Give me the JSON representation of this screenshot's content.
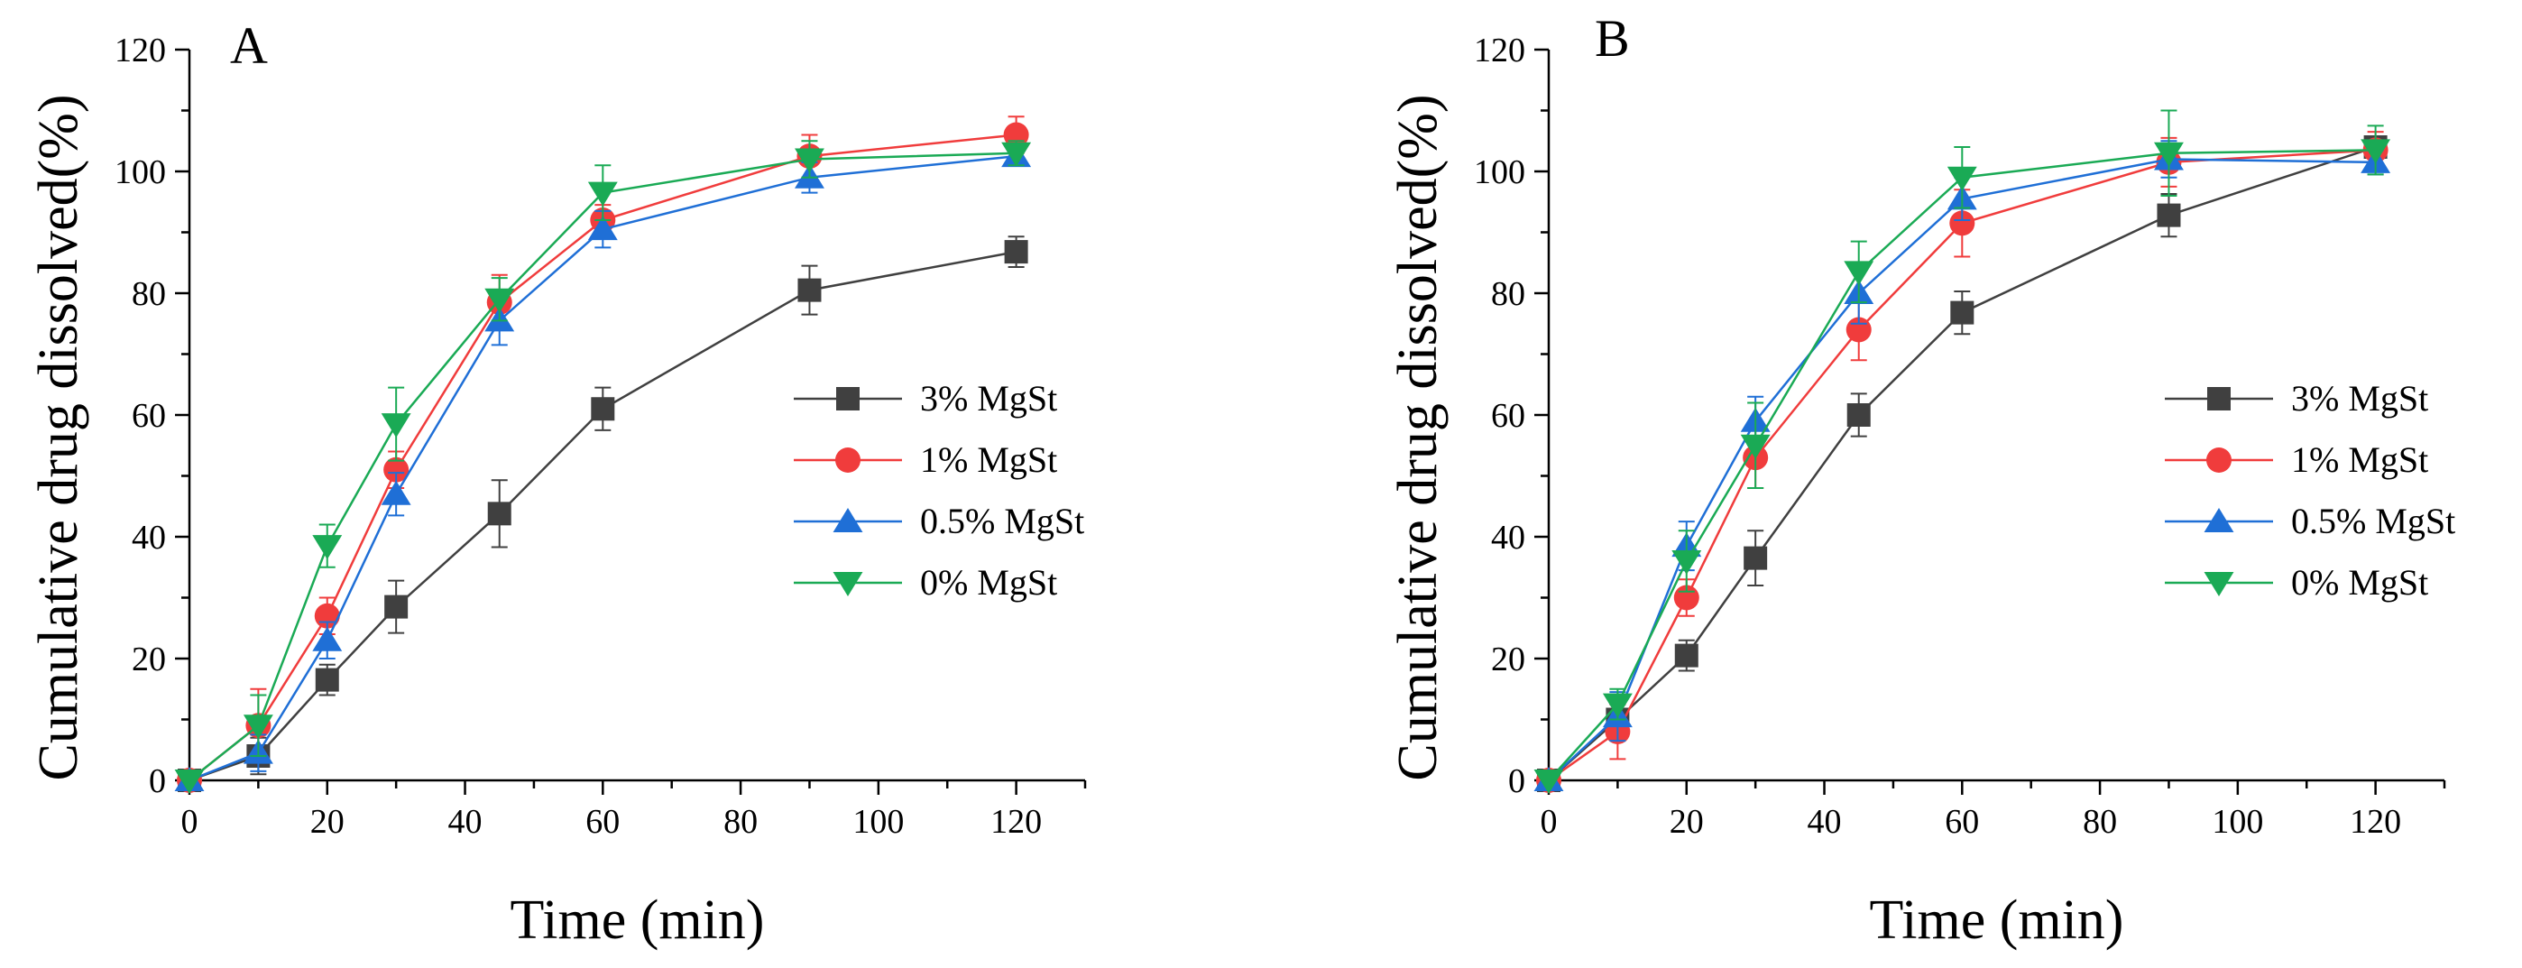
{
  "chart_data": [
    {
      "type": "line",
      "panel_label": "A",
      "xlabel": "Time (min)",
      "ylabel": "Cumulative drug dissolved(%)",
      "xlim": [
        0,
        130
      ],
      "ylim": [
        0,
        120
      ],
      "xticks": [
        0,
        20,
        40,
        60,
        80,
        100,
        120
      ],
      "yticks": [
        0,
        20,
        40,
        60,
        80,
        100,
        120
      ],
      "grid": false,
      "legend_position": "center-right",
      "x": [
        0,
        10,
        20,
        30,
        45,
        60,
        90,
        120
      ],
      "series": [
        {
          "name": "3% MgSt",
          "color": "#404040",
          "marker": "square",
          "values": [
            0,
            4,
            16.5,
            28.5,
            43.8,
            61,
            80.5,
            86.8
          ],
          "errors": [
            0,
            3,
            2.5,
            4.3,
            5.5,
            3.5,
            4,
            2.5
          ]
        },
        {
          "name": "1% MgSt",
          "color": "#f03c3c",
          "marker": "circle",
          "values": [
            0,
            9,
            27,
            51,
            78.5,
            92,
            102.5,
            106
          ],
          "errors": [
            0,
            6,
            3,
            3,
            4.5,
            2.5,
            3.5,
            3
          ]
        },
        {
          "name": "0.5% MgSt",
          "color": "#1f6fd6",
          "marker": "triangle-up",
          "values": [
            0,
            4.5,
            23,
            47,
            75.5,
            90.5,
            99,
            102.5
          ],
          "errors": [
            0,
            3,
            3,
            3.5,
            4,
            3,
            2.5,
            1.5
          ]
        },
        {
          "name": "0% MgSt",
          "color": "#1aaa55",
          "marker": "triangle-down",
          "values": [
            0,
            9,
            38.5,
            58.5,
            79,
            96.5,
            102,
            103
          ],
          "errors": [
            0,
            5,
            3.5,
            6,
            3.5,
            4.5,
            3,
            2
          ]
        }
      ]
    },
    {
      "type": "line",
      "panel_label": "B",
      "xlabel": "Time (min)",
      "ylabel": "Cumulative drug dissolved(%)",
      "xlim": [
        0,
        130
      ],
      "ylim": [
        0,
        120
      ],
      "xticks": [
        0,
        20,
        40,
        60,
        80,
        100,
        120
      ],
      "yticks": [
        0,
        20,
        40,
        60,
        80,
        100,
        120
      ],
      "grid": false,
      "legend_position": "center-right",
      "x": [
        0,
        10,
        20,
        30,
        45,
        60,
        90,
        120
      ],
      "series": [
        {
          "name": "3% MgSt",
          "color": "#404040",
          "marker": "square",
          "values": [
            0,
            10,
            20.5,
            36.5,
            60,
            76.8,
            92.8,
            104
          ],
          "errors": [
            0,
            2.5,
            2.5,
            4.5,
            3.5,
            3.5,
            3.5,
            1.5
          ]
        },
        {
          "name": "1% MgSt",
          "color": "#f03c3c",
          "marker": "circle",
          "values": [
            0,
            8,
            30,
            53,
            74,
            91.5,
            101.5,
            103.5
          ],
          "errors": [
            0,
            4.5,
            3,
            5,
            5,
            5.5,
            4,
            3
          ]
        },
        {
          "name": "0.5% MgSt",
          "color": "#1f6fd6",
          "marker": "triangle-up",
          "values": [
            0,
            10.5,
            38.5,
            59,
            80,
            95.5,
            102,
            101.5
          ],
          "errors": [
            0,
            4,
            4,
            4,
            5,
            3.5,
            3,
            2
          ]
        },
        {
          "name": "0% MgSt",
          "color": "#1aaa55",
          "marker": "triangle-down",
          "values": [
            0,
            12.5,
            36,
            55,
            83.5,
            99,
            103,
            103.5
          ],
          "errors": [
            0,
            2.5,
            5,
            7,
            5,
            5,
            7,
            4
          ]
        }
      ]
    }
  ]
}
